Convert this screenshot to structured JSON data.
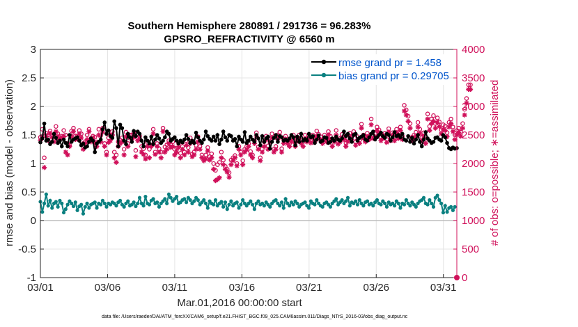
{
  "chart_data": {
    "type": "line",
    "title": "Southern Hemisphere 280891 / 291736 = 96.283%",
    "subtitle": "GPSRO_REFRACTIVITY @ 6560 m",
    "xlabel": "Mar.01,2016 00:00:00 start",
    "ylabel_left": "rmse and bias (model - observation)",
    "ylabel_right": "# of obs: o=possible; ∗=assimilated",
    "footnote": "data file: /Users/raeder/DAI/ATM_forcXX/CAM6_setup/f.e21.FHIST_BGC.f09_025.CAM6assim.011/Diags_NTrS_2016-03/obs_diag_output.nc",
    "x_ticks": [
      "03/01",
      "03/06",
      "03/11",
      "03/16",
      "03/21",
      "03/26",
      "03/31"
    ],
    "x_tick_days": [
      1,
      6,
      11,
      16,
      21,
      26,
      31
    ],
    "xlim": [
      1,
      32
    ],
    "y_left_ticks": [
      "-1",
      "-0.5",
      "0",
      "0.5",
      "1",
      "1.5",
      "2",
      "2.5",
      "3"
    ],
    "ylim_left": [
      -1,
      3
    ],
    "y_right_ticks": [
      "0",
      "500",
      "1000",
      "1500",
      "2000",
      "2500",
      "3000",
      "3500",
      "4000"
    ],
    "ylim_right": [
      0,
      4000
    ],
    "grid": true,
    "legend_position": "top-right",
    "colors": {
      "rmse": "#000000",
      "bias": "#0a8080",
      "obs": "#d0105a",
      "zero_line": "#bdbdbd"
    },
    "series": [
      {
        "name": "rmse grand pr = 1.458",
        "key": "rmse",
        "axis": "left",
        "values": [
          1.37,
          1.44,
          1.7,
          1.4,
          1.42,
          1.34,
          1.38,
          1.52,
          1.45,
          1.36,
          1.4,
          1.3,
          1.42,
          1.36,
          1.3,
          1.5,
          1.38,
          1.42,
          1.44,
          1.46,
          1.4,
          1.32,
          1.35,
          1.28,
          1.3,
          1.38,
          1.44,
          1.4,
          1.2,
          1.35,
          1.38,
          1.42,
          1.6,
          1.72,
          1.52,
          1.58,
          1.48,
          1.45,
          1.74,
          1.62,
          1.3,
          1.68,
          1.62,
          1.4,
          1.34,
          1.52,
          1.46,
          1.38,
          1.57,
          1.48,
          1.56,
          1.52,
          1.4,
          1.3,
          1.46,
          1.4,
          1.35,
          1.47,
          1.34,
          1.42,
          1.5,
          1.44,
          1.36,
          1.4,
          1.46,
          1.56,
          1.52,
          1.4,
          1.43,
          1.46,
          1.4,
          1.35,
          1.4,
          1.37,
          1.42,
          1.5,
          1.43,
          1.36,
          1.4,
          1.36,
          1.54,
          1.46,
          1.4,
          1.36,
          1.42,
          1.56,
          1.48,
          1.43,
          1.4,
          1.47,
          1.4,
          1.5,
          1.34,
          1.42,
          1.56,
          1.46,
          1.4,
          1.5,
          1.48,
          1.4,
          1.43,
          1.3,
          1.47,
          1.42,
          1.38,
          1.55,
          1.36,
          1.4,
          1.47,
          1.42,
          1.38,
          1.5,
          1.44,
          1.32,
          1.48,
          1.38,
          1.44,
          1.47,
          1.26,
          1.38,
          1.45,
          1.5,
          1.38,
          1.48,
          1.46,
          1.4,
          1.42,
          1.4,
          1.44,
          1.5,
          1.46,
          1.32,
          1.47,
          1.38,
          1.52,
          1.4,
          1.43,
          1.4,
          1.52,
          1.46,
          1.48,
          1.36,
          1.42,
          1.49,
          1.38,
          1.4,
          1.46,
          1.45,
          1.36,
          1.38,
          1.44,
          1.4,
          1.47,
          1.42,
          1.4,
          1.44,
          1.56,
          1.48,
          1.52,
          1.44,
          1.38,
          1.5,
          1.52,
          1.4,
          1.45,
          1.47,
          1.5,
          1.42,
          1.4,
          1.46,
          1.52,
          1.56,
          1.42,
          1.46,
          1.5,
          1.54,
          1.48,
          1.45,
          1.52,
          1.5,
          1.4,
          1.46,
          1.55,
          1.48,
          1.5,
          1.46,
          1.52,
          1.42,
          1.4,
          1.48,
          1.38,
          1.45,
          1.35,
          1.42,
          1.5,
          1.38,
          1.3,
          1.42,
          1.55,
          1.44,
          1.4,
          1.36,
          1.38,
          1.45,
          1.46,
          1.42,
          1.4,
          1.5,
          1.46,
          1.36,
          1.27,
          1.25,
          1.28,
          1.26,
          1.27
        ]
      },
      {
        "name": "bias grand pr = 0.29705",
        "key": "bias",
        "axis": "left",
        "values": [
          0.33,
          0.15,
          0.3,
          0.46,
          0.26,
          0.35,
          0.22,
          0.3,
          0.33,
          0.24,
          0.35,
          0.3,
          0.14,
          0.2,
          0.28,
          0.34,
          0.3,
          0.25,
          0.32,
          0.18,
          0.25,
          0.28,
          0.12,
          0.24,
          0.3,
          0.22,
          0.28,
          0.3,
          0.32,
          0.22,
          0.3,
          0.28,
          0.35,
          0.3,
          0.24,
          0.3,
          0.28,
          0.32,
          0.3,
          0.26,
          0.32,
          0.35,
          0.28,
          0.24,
          0.3,
          0.34,
          0.26,
          0.28,
          0.32,
          0.25,
          0.3,
          0.4,
          0.3,
          0.26,
          0.42,
          0.3,
          0.28,
          0.35,
          0.38,
          0.3,
          0.32,
          0.24,
          0.3,
          0.34,
          0.38,
          0.3,
          0.46,
          0.4,
          0.34,
          0.38,
          0.42,
          0.3,
          0.32,
          0.36,
          0.38,
          0.32,
          0.4,
          0.36,
          0.3,
          0.34,
          0.4,
          0.36,
          0.28,
          0.32,
          0.36,
          0.3,
          0.22,
          0.34,
          0.3,
          0.28,
          0.36,
          0.26,
          0.3,
          0.33,
          0.24,
          0.32,
          0.2,
          0.28,
          0.34,
          0.26,
          0.3,
          0.32,
          0.22,
          0.28,
          0.36,
          0.3,
          0.26,
          0.3,
          0.34,
          0.28,
          0.2,
          0.3,
          0.34,
          0.28,
          0.3,
          0.26,
          0.32,
          0.28,
          0.24,
          0.3,
          0.34,
          0.36,
          0.3,
          0.26,
          0.32,
          0.22,
          0.38,
          0.3,
          0.26,
          0.32,
          0.28,
          0.34,
          0.3,
          0.24,
          0.28,
          0.3,
          0.32,
          0.26,
          0.22,
          0.34,
          0.3,
          0.28,
          0.36,
          0.3,
          0.26,
          0.24,
          0.3,
          0.32,
          0.28,
          0.24,
          0.3,
          0.34,
          0.38,
          0.28,
          0.32,
          0.36,
          0.3,
          0.34,
          0.4,
          0.26,
          0.32,
          0.3,
          0.34,
          0.28,
          0.36,
          0.3,
          0.26,
          0.32,
          0.34,
          0.28,
          0.3,
          0.26,
          0.32,
          0.36,
          0.3,
          0.28,
          0.34,
          0.3,
          0.24,
          0.32,
          0.28,
          0.3,
          0.26,
          0.34,
          0.3,
          0.22,
          0.3,
          0.28,
          0.36,
          0.3,
          0.26,
          0.32,
          0.28,
          0.24,
          0.3,
          0.34,
          0.36,
          0.4,
          0.3,
          0.28,
          0.36,
          0.3,
          0.24,
          0.4,
          0.44,
          0.36,
          0.3,
          0.14,
          0.26,
          0.15,
          0.22,
          0.24,
          0.18,
          0.24
        ]
      },
      {
        "key": "possible",
        "axis": "right",
        "marker": "o",
        "values": [
          2460,
          2600,
          2100,
          2530,
          2500,
          2570,
          2500,
          2430,
          2650,
          2520,
          2450,
          2480,
          2580,
          2500,
          2350,
          2320,
          2570,
          2620,
          2480,
          2480,
          2580,
          2520,
          2350,
          2380,
          2500,
          2600,
          2440,
          2480,
          2460,
          2380,
          2600,
          2490,
          2620,
          2350,
          2200,
          2450,
          2500,
          2560,
          2200,
          2150,
          2380,
          2410,
          2450,
          2250,
          2550,
          2350,
          2500,
          2500,
          2540,
          2230,
          2450,
          2480,
          2300,
          2260,
          2150,
          2370,
          2250,
          2390,
          2600,
          2200,
          2350,
          2260,
          2200,
          2620,
          2290,
          2330,
          2400,
          2340,
          2380,
          2250,
          2270,
          2350,
          2180,
          2300,
          2200,
          2400,
          2280,
          2450,
          2160,
          2200,
          2320,
          2470,
          2300,
          2150,
          2100,
          2150,
          2280,
          2120,
          2170,
          2000,
          1880,
          1980,
          2020,
          2200,
          2060,
          1950,
          1900,
          1840,
          2060,
          2100,
          2140,
          2000,
          2300,
          2200,
          2050,
          2250,
          2300,
          2350,
          2210,
          2150,
          2400,
          2540,
          2290,
          2100,
          2250,
          2380,
          2480,
          2310,
          2420,
          2520,
          2250,
          2300,
          2500,
          2550,
          2260,
          2420,
          2480,
          2400,
          2350,
          2440,
          2500,
          2360,
          2460,
          2500,
          2410,
          2380,
          2500,
          2430,
          2460,
          2420,
          2500,
          2430,
          2570,
          2510,
          2470,
          2400,
          2500,
          2430,
          2560,
          2480,
          2350,
          2420,
          2580,
          2390,
          2440,
          2510,
          2470,
          2360,
          2440,
          2530,
          2480,
          2560,
          2380,
          2470,
          2410,
          2690,
          2500,
          2430,
          2530,
          2470,
          2780,
          2500,
          2520,
          2640,
          2590,
          2460,
          2500,
          2530,
          2420,
          2610,
          2460,
          2540,
          2460,
          2600,
          2500,
          2640,
          2480,
          3020,
          2940,
          2830,
          2700,
          2460,
          2500,
          2550,
          2720,
          2600,
          2460,
          2540,
          2420,
          2870,
          2650,
          2780,
          2840,
          2700,
          2800,
          2730,
          2590,
          2680,
          2660,
          2540,
          2720,
          2780,
          2640,
          2500,
          2580,
          2620,
          2550,
          2700,
          2950,
          3140,
          3380,
          3380
        ]
      },
      {
        "key": "assimilated",
        "axis": "right",
        "marker": "*",
        "values": [
          2400,
          2480,
          1930,
          2480,
          2400,
          2530,
          2460,
          2380,
          2560,
          2480,
          2420,
          2450,
          2480,
          2200,
          2150,
          2300,
          2480,
          2560,
          2420,
          2430,
          2520,
          2450,
          2250,
          2350,
          2420,
          2560,
          2380,
          2450,
          2360,
          2300,
          2500,
          2380,
          2550,
          2300,
          2150,
          2370,
          2400,
          2500,
          2100,
          2020,
          2300,
          2350,
          2380,
          2150,
          2470,
          2300,
          2450,
          2420,
          2460,
          2120,
          2400,
          2430,
          2200,
          2160,
          2080,
          2300,
          2100,
          2300,
          2520,
          2160,
          2300,
          2200,
          2100,
          2560,
          2200,
          2250,
          2350,
          2280,
          2300,
          2150,
          2200,
          2280,
          2100,
          2250,
          2150,
          2320,
          2200,
          2350,
          2120,
          2150,
          2250,
          2380,
          2250,
          2100,
          2050,
          2080,
          2220,
          2060,
          2100,
          1900,
          1700,
          1720,
          1750,
          2100,
          1980,
          1900,
          1850,
          1760,
          1980,
          2050,
          2100,
          1960,
          2250,
          2150,
          1980,
          2200,
          2240,
          2300,
          2150,
          2100,
          2350,
          2480,
          2250,
          2050,
          2200,
          2300,
          2420,
          2250,
          2380,
          2450,
          2200,
          2250,
          2420,
          2480,
          2200,
          2350,
          2430,
          2350,
          2300,
          2380,
          2450,
          2300,
          2400,
          2440,
          2350,
          2300,
          2430,
          2380,
          2400,
          2360,
          2450,
          2380,
          2480,
          2450,
          2420,
          2350,
          2440,
          2380,
          2500,
          2420,
          2300,
          2380,
          2500,
          2340,
          2380,
          2450,
          2420,
          2300,
          2380,
          2470,
          2420,
          2500,
          2320,
          2420,
          2350,
          2620,
          2440,
          2380,
          2470,
          2420,
          2680,
          2440,
          2470,
          2580,
          2540,
          2400,
          2440,
          2470,
          2370,
          2550,
          2400,
          2500,
          2400,
          2540,
          2440,
          2580,
          2420,
          2920,
          2850,
          2740,
          2620,
          2400,
          2450,
          2480,
          2640,
          2530,
          2400,
          2480,
          2350,
          2780,
          2580,
          2700,
          2740,
          2620,
          2720,
          2650,
          2520,
          2600,
          2580,
          2470,
          2640,
          2700,
          2560,
          2420,
          2500,
          2540,
          2480,
          2620,
          2850,
          3060,
          3300,
          3300
        ]
      }
    ]
  }
}
